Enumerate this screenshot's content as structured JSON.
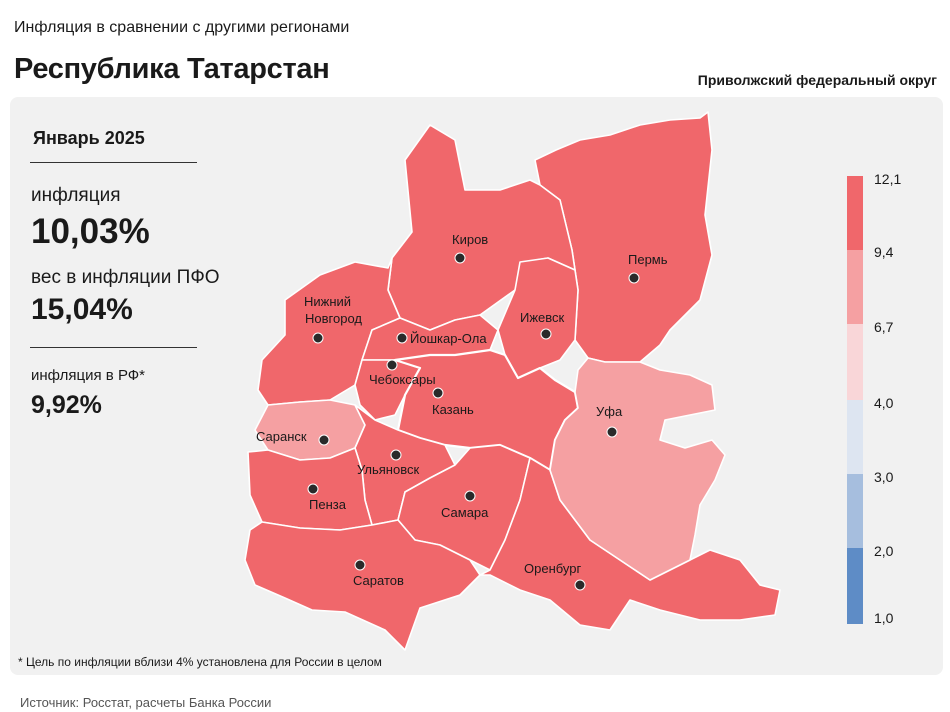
{
  "header": {
    "subtitle": "Инфляция в сравнении с другими регионами",
    "title": "Республика Татарстан",
    "district": "Приволжский федеральный округ"
  },
  "stats": {
    "period": "Январь 2025",
    "inflation_label": "инфляция",
    "inflation_value": "10,03%",
    "weight_label": "вес в инфляции ПФО",
    "weight_value": "15,04%",
    "rf_label": "инфляция в РФ*",
    "rf_value": "9,92%"
  },
  "legend": {
    "ticks": [
      "12,1",
      "9,4",
      "6,7",
      "4,0",
      "3,0",
      "2,0",
      "1,0"
    ],
    "colors": [
      "#f0676b",
      "#f5a0a2",
      "#f9d6d8",
      "#dde5f1",
      "#a6bede",
      "#5e8cc6"
    ]
  },
  "cities": {
    "kirov": "Киров",
    "perm": "Пермь",
    "nizhny": "Нижний\nНовгород",
    "nizhny_line1": "Нижний",
    "nizhny_line2": "Новгород",
    "yoshkar": "Йошкар-Ола",
    "izhevsk": "Ижевск",
    "cheboksary": "Чебоксары",
    "kazan": "Казань",
    "ufa": "Уфа",
    "saransk": "Саранск",
    "ulyanovsk": "Ульяновск",
    "penza": "Пенза",
    "samara": "Самара",
    "saratov": "Саратов",
    "orenburg": "Оренбург"
  },
  "colors": {
    "high": "#f0676b",
    "mid": "#f5a0a2",
    "border": "#ffffff",
    "panel": "#f1f1f1"
  },
  "footnote": "* Цель по инфляции вблизи 4% установлена для России в целом",
  "source": "Источник: Росстат, расчеты Банка России"
}
